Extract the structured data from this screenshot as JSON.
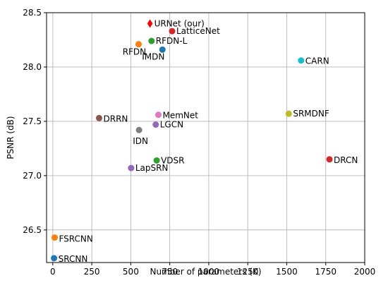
{
  "chart_data": {
    "type": "scatter",
    "title": "",
    "xlabel": "Number of parameters (K)",
    "ylabel": "PSNR (dB)",
    "xlim": [
      -40,
      2000
    ],
    "ylim": [
      26.2,
      28.5
    ],
    "xticks": [
      0,
      250,
      500,
      750,
      1000,
      1250,
      1500,
      1750,
      2000
    ],
    "yticks": [
      26.5,
      27.0,
      27.5,
      28.0,
      28.5
    ],
    "ytick_labels": [
      "26.5",
      "27.0",
      "27.5",
      "28.0",
      "28.5"
    ],
    "grid": true,
    "points": [
      {
        "label": "URNet (our)",
        "x": 623,
        "y": 28.4,
        "color": "#ff0000",
        "marker": "diamond",
        "label_color": "#ff0000"
      },
      {
        "label": "LatticeNet",
        "x": 765,
        "y": 28.33,
        "color": "#d62728",
        "marker": "circle"
      },
      {
        "label": "RFDN-L",
        "x": 633,
        "y": 28.24,
        "color": "#2ca02c",
        "marker": "circle"
      },
      {
        "label": "RFDN",
        "x": 550,
        "y": 28.21,
        "color": "#ff7f0e",
        "marker": "circle"
      },
      {
        "label": "IMDN",
        "x": 703,
        "y": 28.16,
        "color": "#1f77b4",
        "marker": "circle"
      },
      {
        "label": "CARN",
        "x": 1592,
        "y": 28.06,
        "color": "#17becf",
        "marker": "circle"
      },
      {
        "label": "DRRN",
        "x": 297,
        "y": 27.53,
        "color": "#8c564b",
        "marker": "circle"
      },
      {
        "label": "MemNet",
        "x": 677,
        "y": 27.56,
        "color": "#e377c2",
        "marker": "circle"
      },
      {
        "label": "LGCN",
        "x": 660,
        "y": 27.47,
        "color": "#9467bd",
        "marker": "circle"
      },
      {
        "label": "IDN",
        "x": 553,
        "y": 27.42,
        "color": "#7f7f7f",
        "marker": "circle"
      },
      {
        "label": "SRMDNF",
        "x": 1513,
        "y": 27.57,
        "color": "#bcbd22",
        "marker": "circle"
      },
      {
        "label": "VDSR",
        "x": 666,
        "y": 27.14,
        "color": "#2ca02c",
        "marker": "circle"
      },
      {
        "label": "LapSRN",
        "x": 502,
        "y": 27.07,
        "color": "#9467bd",
        "marker": "circle"
      },
      {
        "label": "DRCN",
        "x": 1774,
        "y": 27.15,
        "color": "#d62728",
        "marker": "circle"
      },
      {
        "label": "FSRCNN",
        "x": 12,
        "y": 26.43,
        "color": "#ff7f0e",
        "marker": "circle"
      },
      {
        "label": "SRCNN",
        "x": 8,
        "y": 26.24,
        "color": "#1f77b4",
        "marker": "circle"
      }
    ]
  }
}
